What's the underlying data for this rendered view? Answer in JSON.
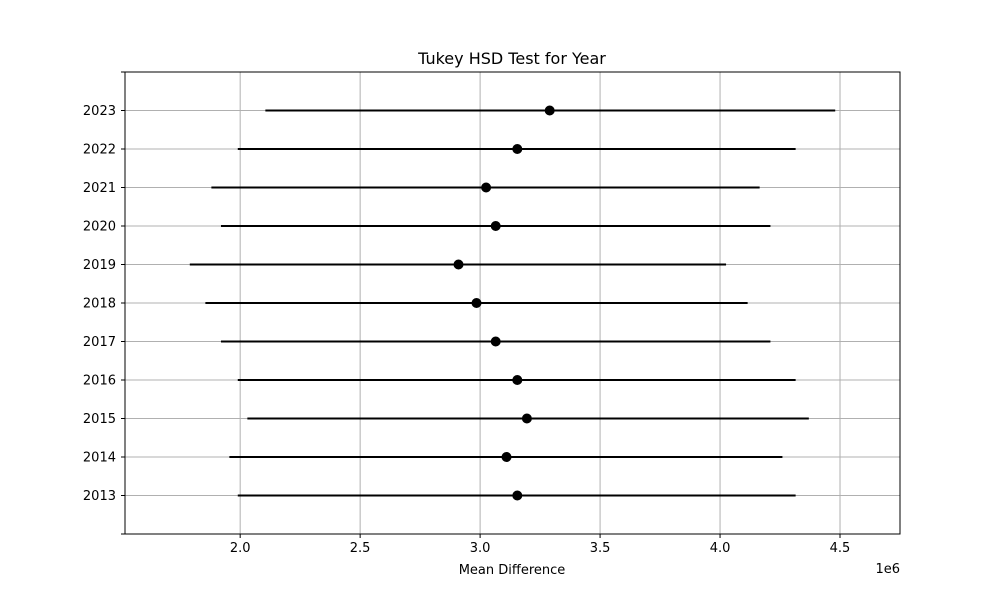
{
  "chart_data": {
    "type": "scatter",
    "title": "Tukey HSD Test for Year",
    "xlabel": "Mean Difference",
    "ylabel": "",
    "x_offset_label": "1e6",
    "xlim": [
      1520000,
      4750000
    ],
    "x_scale_factor": 1000000,
    "x_ticks": [
      2000000,
      2500000,
      3000000,
      3500000,
      4000000,
      4500000
    ],
    "x_tick_labels": [
      "2.0",
      "2.5",
      "3.0",
      "3.5",
      "4.0",
      "4.5"
    ],
    "categories": [
      "2013",
      "2014",
      "2015",
      "2016",
      "2017",
      "2018",
      "2019",
      "2020",
      "2021",
      "2022",
      "2023"
    ],
    "series": [
      {
        "means": [
          3155000,
          3110000,
          3195000,
          3155000,
          3065000,
          2985000,
          2910000,
          3065000,
          3025000,
          3155000,
          3290000
        ],
        "lower": [
          1990000,
          1955000,
          2030000,
          1990000,
          1920000,
          1855000,
          1790000,
          1920000,
          1880000,
          1990000,
          2105000
        ],
        "upper": [
          4315000,
          4260000,
          4370000,
          4315000,
          4210000,
          4115000,
          4025000,
          4210000,
          4165000,
          4315000,
          4480000
        ]
      }
    ],
    "grid": true,
    "legend": "none",
    "colors": {
      "marker": "#000000",
      "line": "#000000",
      "grid": "#b0b0b0",
      "axes": "#000000",
      "background": "#ffffff"
    }
  }
}
